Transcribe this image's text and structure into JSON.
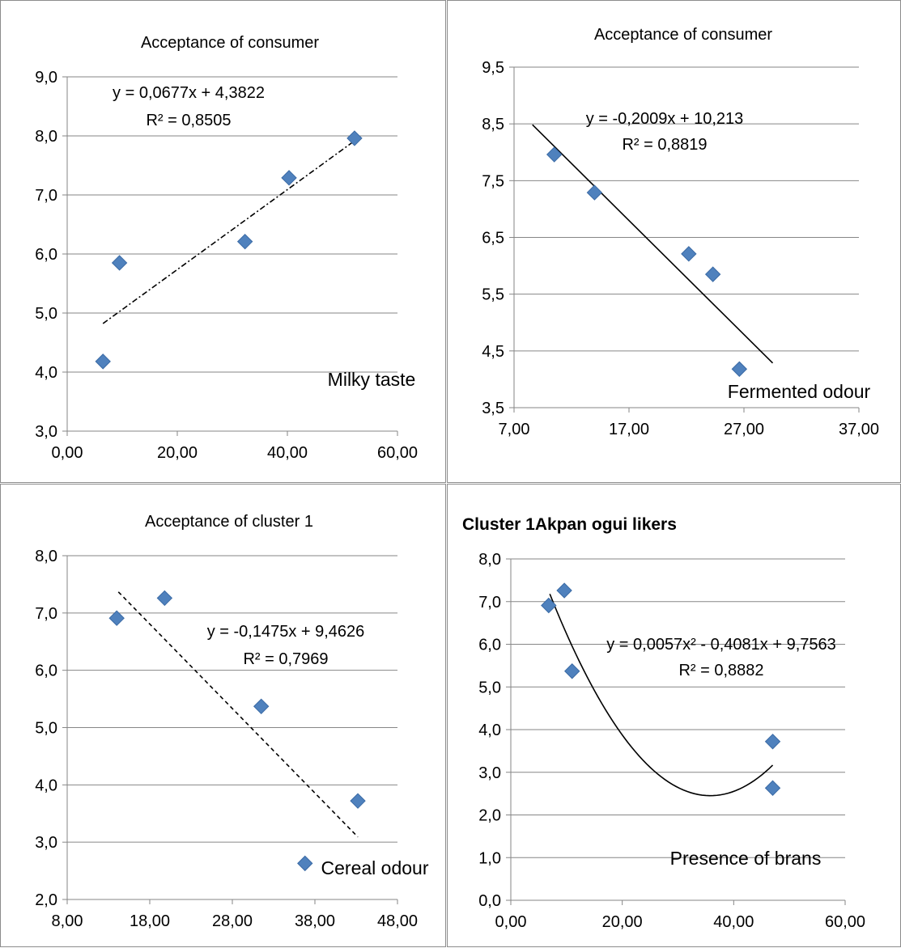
{
  "chart_data": [
    {
      "type": "scatter",
      "title": "Acceptance of consumer",
      "title_bold": false,
      "xlabel": "",
      "ylabel": "",
      "xlim": [
        0,
        60
      ],
      "xstep": 20,
      "xdecimals": 2,
      "ylim": [
        3,
        9
      ],
      "ystep": 1,
      "ydecimals": 1,
      "marker_color": "#4f81bd",
      "points": [
        [
          6.5,
          4.18
        ],
        [
          9.5,
          5.85
        ],
        [
          32.3,
          6.21
        ],
        [
          40.3,
          7.29
        ],
        [
          52.2,
          7.96
        ]
      ],
      "trendline": {
        "kind": "linear",
        "coef": [
          4.3822,
          0.0677
        ],
        "x_range": [
          6.5,
          52.2
        ],
        "style": "dashdot"
      },
      "equation": "y = 0,0677x + 4,3822",
      "r2": "R² = 0,8505",
      "annotation": "Milky taste"
    },
    {
      "type": "scatter",
      "title": "Acceptance of consumer",
      "title_bold": false,
      "xlabel": "",
      "ylabel": "",
      "xlim": [
        7,
        37
      ],
      "xstep": 10,
      "xdecimals": 2,
      "ylim": [
        3.5,
        9.5
      ],
      "ystep": 1,
      "ydecimals": 1,
      "marker_color": "#4f81bd",
      "points": [
        [
          10.5,
          7.96
        ],
        [
          14.0,
          7.29
        ],
        [
          22.2,
          6.21
        ],
        [
          24.3,
          5.85
        ],
        [
          26.6,
          4.18
        ]
      ],
      "trendline": {
        "kind": "linear",
        "coef": [
          10.213,
          -0.2009
        ],
        "x_range": [
          8.6,
          29.5
        ],
        "style": "solid"
      },
      "equation": "y = -0,2009x + 10,213",
      "r2": "R² = 0,8819",
      "annotation": "Fermented odour"
    },
    {
      "type": "scatter",
      "title": "Acceptance of cluster 1",
      "title_bold": false,
      "xlabel": "",
      "ylabel": "",
      "xlim": [
        8,
        48
      ],
      "xstep": 10,
      "xdecimals": 2,
      "ylim": [
        2,
        8
      ],
      "ystep": 1,
      "ydecimals": 1,
      "marker_color": "#4f81bd",
      "points": [
        [
          14.0,
          6.91
        ],
        [
          19.8,
          7.26
        ],
        [
          31.5,
          5.37
        ],
        [
          36.8,
          2.63
        ],
        [
          43.2,
          3.72
        ]
      ],
      "trendline": {
        "kind": "linear",
        "coef": [
          9.4626,
          -0.1475
        ],
        "x_range": [
          14.2,
          43.2
        ],
        "style": "dashed"
      },
      "equation": "y = -0,1475x + 9,4626",
      "r2": "R² = 0,7969",
      "annotation": "Cereal odour"
    },
    {
      "type": "scatter",
      "title": "Cluster 1Akpan ogui likers",
      "title_bold": true,
      "xlabel": "",
      "ylabel": "",
      "xlim": [
        0,
        60
      ],
      "xstep": 20,
      "xdecimals": 2,
      "ylim": [
        0,
        8
      ],
      "ystep": 1,
      "ydecimals": 1,
      "marker_color": "#4f81bd",
      "points": [
        [
          6.8,
          6.91
        ],
        [
          9.6,
          7.26
        ],
        [
          11.0,
          5.37
        ],
        [
          47.0,
          3.72
        ],
        [
          47.0,
          2.63
        ]
      ],
      "trendline": {
        "kind": "poly2",
        "coef": [
          9.7563,
          -0.4081,
          0.0057
        ],
        "x_range": [
          7.0,
          47.0
        ],
        "style": "solid"
      },
      "equation": "y = 0,0057x² - 0,4081x + 9,7563",
      "r2": "R² = 0,8882",
      "annotation": "Presence of brans"
    }
  ]
}
